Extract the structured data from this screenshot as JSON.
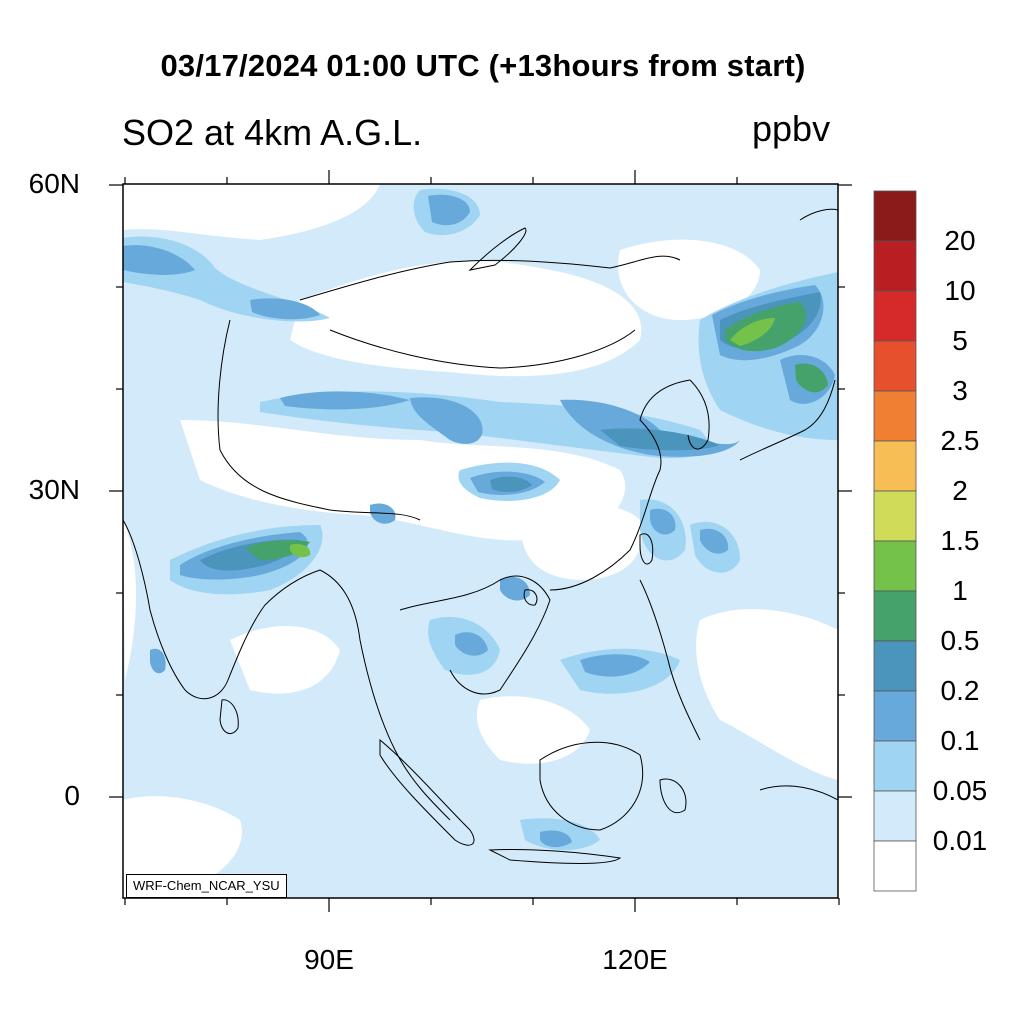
{
  "title": "03/17/2024 01:00 UTC (+13hours from start)",
  "subtitle": "SO2 at 4km A.G.L.",
  "units": "ppbv",
  "credit": "WRF-Chem_NCAR_YSU",
  "lat_labels": [
    "60N",
    "30N",
    "0"
  ],
  "lon_labels": [
    "90E",
    "120E"
  ],
  "colorbar": {
    "labels": [
      "20",
      "10",
      "5",
      "3",
      "2.5",
      "2",
      "1.5",
      "1",
      "0.5",
      "0.2",
      "0.1",
      "0.05",
      "0.01"
    ],
    "colors": [
      "#8b1a1a",
      "#b81e22",
      "#d62a2a",
      "#e6502d",
      "#f07f34",
      "#f6be55",
      "#cfdc5a",
      "#74c24a",
      "#45a26a",
      "#4b95bc",
      "#68a9dc",
      "#9fd4f2",
      "#d2eaf9",
      "#ffffff"
    ]
  },
  "map": {
    "projection": "lat-lon",
    "lon_range": [
      70,
      140
    ],
    "lat_range": [
      -10,
      60
    ]
  }
}
